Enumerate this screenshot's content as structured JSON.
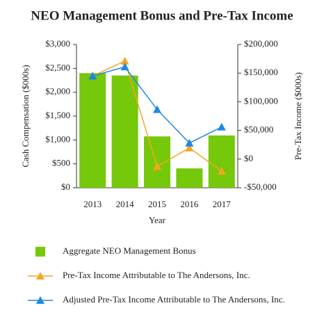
{
  "chart_data": {
    "type": "bar-line",
    "title": "NEO Management Bonus and Pre-Tax Income",
    "x_label": "Year",
    "y_label": "Cash Compensation ($000s)",
    "y2_label": "Pre-Tax Income ($000s)",
    "categories": [
      "2013",
      "2014",
      "2015",
      "2016",
      "2017"
    ],
    "ylim": [
      0,
      3000
    ],
    "yticks": [
      {
        "value": 0,
        "label": "$0"
      },
      {
        "value": 500,
        "label": "$500"
      },
      {
        "value": 1000,
        "label": "$1,000"
      },
      {
        "value": 1500,
        "label": "$1,500"
      },
      {
        "value": 2000,
        "label": "$2,000"
      },
      {
        "value": 2500,
        "label": "$2,500"
      },
      {
        "value": 3000,
        "label": "$3,000"
      }
    ],
    "y2lim": [
      -50000,
      200000
    ],
    "y2ticks": [
      {
        "value": -50000,
        "label": "-$50,000"
      },
      {
        "value": 0,
        "label": "$0"
      },
      {
        "value": 50000,
        "label": "$50,000"
      },
      {
        "value": 100000,
        "label": "$100,000"
      },
      {
        "value": 150000,
        "label": "$150,000"
      },
      {
        "value": 200000,
        "label": "$200,000"
      }
    ],
    "series": [
      {
        "name": "Aggregate NEO Management Bonus",
        "type": "bar",
        "color": "#76c80a",
        "values": [
          2400,
          2350,
          1075,
          405,
          1095
        ]
      },
      {
        "name": "Pre-Tax Income Attributable to The Andersons, Inc.",
        "type": "line",
        "axis": "y2",
        "color": "#f5a623",
        "values": [
          145000,
          171000,
          -13000,
          19500,
          -21000
        ]
      },
      {
        "name": "Adjusted Pre-Tax Income Attributable to The Andersons, Inc.",
        "type": "line",
        "axis": "y2",
        "color": "#1e88e5",
        "values": [
          145000,
          161000,
          86500,
          28000,
          56000
        ]
      }
    ]
  }
}
